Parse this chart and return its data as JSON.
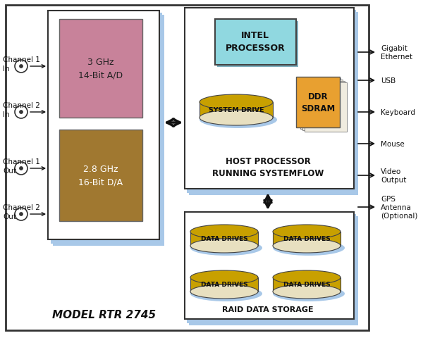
{
  "bg_color": "#ffffff",
  "box_colors": {
    "adc_box": "#c8829a",
    "dac_box": "#a07830",
    "shadow_color": "#a8c8e8",
    "intel_box": "#90d8e0",
    "ddr_box": "#e8a030",
    "disk_gold": "#c8a000",
    "disk_shadow": "#a8c8e8",
    "disk_white": "#f0f0f0"
  },
  "adc_text": "3 GHz\n14-Bit A/D",
  "dac_text": "2.8 GHz\n16-Bit D/A",
  "intel_text": "INTEL\nPROCESSOR",
  "ddr_text": "DDR\nSDRAM",
  "system_drive_text": "SYSTEM DRIVE",
  "data_drive_text": "DATA DRIVES",
  "host_label": "HOST PROCESSOR\nRUNNING SYSTEMFLOW",
  "raid_label": "RAID DATA STORAGE",
  "model_text": "MODEL RTR 2745",
  "left_labels": [
    [
      "Channel 1",
      "In"
    ],
    [
      "Channel 2",
      "In"
    ],
    [
      "Channel 1",
      "Out"
    ],
    [
      "Channel 2",
      "Out"
    ]
  ],
  "right_labels": [
    [
      "Gigabit",
      "Ethernet"
    ],
    [
      "USB",
      ""
    ],
    [
      "Keyboard",
      ""
    ],
    [
      "Mouse",
      ""
    ],
    [
      "Video",
      "Output"
    ],
    [
      "GPS",
      "Antenna\n(Optional)"
    ]
  ]
}
